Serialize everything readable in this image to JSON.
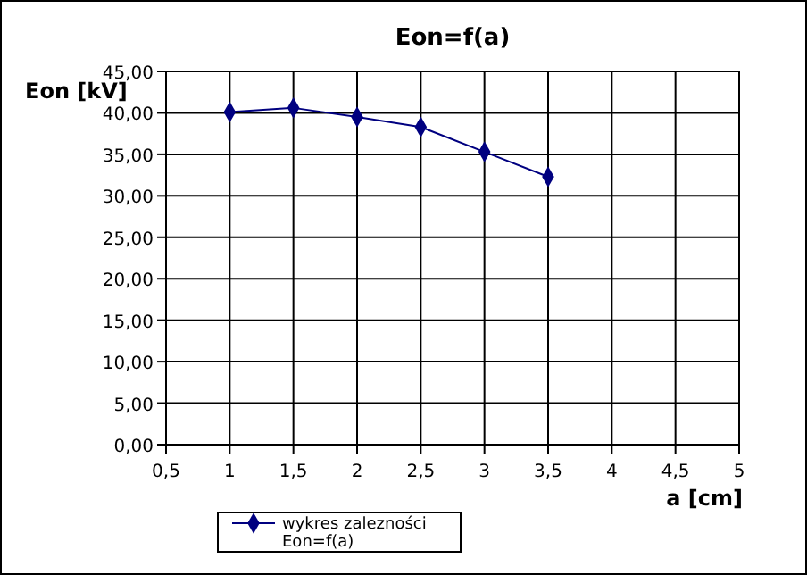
{
  "chart_data": {
    "type": "line",
    "title": "Eon=f(a)",
    "xlabel": "a [cm]",
    "ylabel": "Eon [kV]",
    "x": [
      1,
      1.5,
      2,
      2.5,
      3,
      3.5
    ],
    "series": [
      {
        "name": "wykres zalezności Eon=f(a)",
        "color": "#000080",
        "values": [
          40.1,
          40.6,
          39.5,
          38.3,
          35.3,
          32.3
        ]
      }
    ],
    "xlim": [
      0.5,
      5
    ],
    "xticks": [
      {
        "value": 0.5,
        "label": "0,5"
      },
      1,
      {
        "value": 1.5,
        "label": "1,5"
      },
      2,
      {
        "value": 2.5,
        "label": "2,5"
      },
      3,
      {
        "value": 3.5,
        "label": "3,5"
      },
      4,
      {
        "value": 4.5,
        "label": "4,5"
      },
      5
    ],
    "ylim": [
      0,
      45
    ],
    "yticks": [
      {
        "value": 0,
        "label": "0,00"
      },
      {
        "value": 5,
        "label": "5,00"
      },
      {
        "value": 10,
        "label": "10,00"
      },
      {
        "value": 15,
        "label": "15,00"
      },
      {
        "value": 20,
        "label": "20,00"
      },
      {
        "value": 25,
        "label": "25,00"
      },
      {
        "value": 30,
        "label": "30,00"
      },
      {
        "value": 35,
        "label": "35,00"
      },
      {
        "value": 40,
        "label": "40,00"
      },
      {
        "value": 45,
        "label": "45,00"
      }
    ],
    "grid": true,
    "legend": "bottom",
    "marker": "diamond",
    "line_style": "solid"
  }
}
